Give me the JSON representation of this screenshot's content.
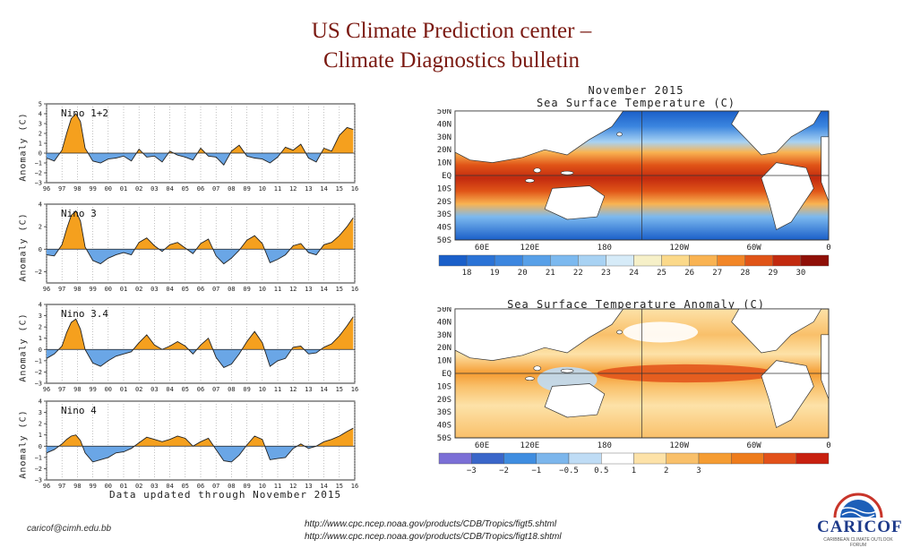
{
  "slide": {
    "title_line1": "US Climate Prediction center –",
    "title_line2": "Climate Diagnostics bulletin",
    "footer_email": "caricof@cimh.edu.bb",
    "url1": "http://www.cpc.ncep.noaa.gov/products/CDB/Tropics/figt5.shtml",
    "url2": "http://www.cpc.ncep.noaa.gov/products/CDB/Tropics/figt18.shtml",
    "updated_note": "Data updated through November 2015",
    "logo_text": "CARICOF",
    "logo_sub": "CARIBBEAN CLIMATE OUTLOOK FORUM"
  },
  "colors": {
    "positive": "#f5a01e",
    "negative": "#6aa6e6",
    "ocean": "#3b7fd0",
    "land": "#ffffff",
    "dark": "#222222"
  },
  "chart_data": [
    {
      "type": "area",
      "title": "Nino 1+2",
      "ylabel": "Anomaly (C)",
      "ylim": [
        -3,
        5
      ],
      "yticks": [
        -3,
        -2,
        -1,
        0,
        1,
        2,
        3,
        4,
        5
      ],
      "xticks": [
        "96",
        "97",
        "98",
        "99",
        "00",
        "01",
        "02",
        "03",
        "04",
        "05",
        "06",
        "07",
        "08",
        "09",
        "10",
        "11",
        "12",
        "13",
        "14",
        "15",
        "16"
      ],
      "x": [
        1996,
        1996.5,
        1997,
        1997.3,
        1997.6,
        1997.9,
        1998.2,
        1998.5,
        1999,
        1999.5,
        2000,
        2000.5,
        2001,
        2001.5,
        2002,
        2002.5,
        2003,
        2003.5,
        2004,
        2004.5,
        2005,
        2005.5,
        2006,
        2006.5,
        2007,
        2007.5,
        2008,
        2008.5,
        2009,
        2009.5,
        2010,
        2010.5,
        2011,
        2011.5,
        2012,
        2012.5,
        2013,
        2013.5,
        2014,
        2014.5,
        2015,
        2015.5,
        2015.9
      ],
      "y": [
        -0.5,
        -0.8,
        0.3,
        2.0,
        3.5,
        4.0,
        3.2,
        0.5,
        -0.8,
        -1.0,
        -0.6,
        -0.5,
        -0.3,
        -0.8,
        0.4,
        -0.4,
        -0.3,
        -0.9,
        0.2,
        -0.2,
        -0.4,
        -0.7,
        0.5,
        -0.3,
        -0.4,
        -1.2,
        0.2,
        0.8,
        -0.3,
        -0.5,
        -0.6,
        -1.0,
        -0.4,
        0.6,
        0.3,
        0.9,
        -0.5,
        -0.9,
        0.5,
        0.2,
        1.8,
        2.6,
        2.4
      ]
    },
    {
      "type": "area",
      "title": "Nino 3",
      "ylabel": "Anomaly (C)",
      "ylim": [
        -3,
        4
      ],
      "yticks": [
        -2,
        0,
        2,
        4
      ],
      "xticks": [
        "96",
        "97",
        "98",
        "99",
        "00",
        "01",
        "02",
        "03",
        "04",
        "05",
        "06",
        "07",
        "08",
        "09",
        "10",
        "11",
        "12",
        "13",
        "14",
        "15",
        "16"
      ],
      "x": [
        1996,
        1996.5,
        1997,
        1997.3,
        1997.6,
        1997.9,
        1998.2,
        1998.5,
        1999,
        1999.5,
        2000,
        2000.5,
        2001,
        2001.5,
        2002,
        2002.5,
        2003,
        2003.5,
        2004,
        2004.5,
        2005,
        2005.5,
        2006,
        2006.5,
        2007,
        2007.5,
        2008,
        2008.5,
        2009,
        2009.5,
        2010,
        2010.5,
        2011,
        2011.5,
        2012,
        2012.5,
        2013,
        2013.5,
        2014,
        2014.5,
        2015,
        2015.5,
        2015.9
      ],
      "y": [
        -0.5,
        -0.6,
        0.4,
        1.8,
        3.0,
        3.4,
        2.5,
        0.2,
        -1.0,
        -1.3,
        -0.8,
        -0.5,
        -0.3,
        -0.5,
        0.6,
        1.0,
        0.3,
        -0.2,
        0.4,
        0.6,
        0.1,
        -0.4,
        0.5,
        0.9,
        -0.6,
        -1.3,
        -0.8,
        -0.1,
        0.8,
        1.2,
        0.5,
        -1.2,
        -0.9,
        -0.5,
        0.3,
        0.5,
        -0.3,
        -0.5,
        0.4,
        0.6,
        1.2,
        2.0,
        2.8
      ]
    },
    {
      "type": "area",
      "title": "Nino 3.4",
      "ylabel": "Anomaly (C)",
      "ylim": [
        -3,
        4
      ],
      "yticks": [
        -3,
        -2,
        -1,
        0,
        1,
        2,
        3,
        4
      ],
      "xticks": [
        "96",
        "97",
        "98",
        "99",
        "00",
        "01",
        "02",
        "03",
        "04",
        "05",
        "06",
        "07",
        "08",
        "09",
        "10",
        "11",
        "12",
        "13",
        "14",
        "15",
        "16"
      ],
      "x": [
        1996,
        1996.5,
        1997,
        1997.3,
        1997.6,
        1997.9,
        1998.2,
        1998.5,
        1999,
        1999.5,
        2000,
        2000.5,
        2001,
        2001.5,
        2002,
        2002.5,
        2003,
        2003.5,
        2004,
        2004.5,
        2005,
        2005.5,
        2006,
        2006.5,
        2007,
        2007.5,
        2008,
        2008.5,
        2009,
        2009.5,
        2010,
        2010.5,
        2011,
        2011.5,
        2012,
        2012.5,
        2013,
        2013.5,
        2014,
        2014.5,
        2015,
        2015.5,
        2015.9
      ],
      "y": [
        -0.8,
        -0.4,
        0.3,
        1.5,
        2.4,
        2.7,
        1.8,
        0.0,
        -1.2,
        -1.5,
        -1.0,
        -0.6,
        -0.4,
        -0.2,
        0.6,
        1.3,
        0.4,
        0.0,
        0.3,
        0.7,
        0.3,
        -0.4,
        0.4,
        1.0,
        -0.7,
        -1.6,
        -1.3,
        -0.4,
        0.7,
        1.6,
        0.6,
        -1.5,
        -1.0,
        -0.8,
        0.2,
        0.3,
        -0.4,
        -0.3,
        0.2,
        0.5,
        1.2,
        2.1,
        2.9
      ]
    },
    {
      "type": "area",
      "title": "Nino 4",
      "ylabel": "Anomaly (C)",
      "ylim": [
        -3,
        4
      ],
      "yticks": [
        -3,
        -2,
        -1,
        0,
        1,
        2,
        3,
        4
      ],
      "xticks": [
        "96",
        "97",
        "98",
        "99",
        "00",
        "01",
        "02",
        "03",
        "04",
        "05",
        "06",
        "07",
        "08",
        "09",
        "10",
        "11",
        "12",
        "13",
        "14",
        "15",
        "16"
      ],
      "x": [
        1996,
        1996.5,
        1997,
        1997.3,
        1997.6,
        1997.9,
        1998.2,
        1998.5,
        1999,
        1999.5,
        2000,
        2000.5,
        2001,
        2001.5,
        2002,
        2002.5,
        2003,
        2003.5,
        2004,
        2004.5,
        2005,
        2005.5,
        2006,
        2006.5,
        2007,
        2007.5,
        2008,
        2008.5,
        2009,
        2009.5,
        2010,
        2010.5,
        2011,
        2011.5,
        2012,
        2012.5,
        2013,
        2013.5,
        2014,
        2014.5,
        2015,
        2015.5,
        2015.9
      ],
      "y": [
        -0.6,
        -0.3,
        0.2,
        0.6,
        0.9,
        1.0,
        0.5,
        -0.6,
        -1.4,
        -1.2,
        -1.0,
        -0.6,
        -0.5,
        -0.2,
        0.3,
        0.8,
        0.6,
        0.4,
        0.6,
        0.9,
        0.7,
        0.0,
        0.4,
        0.7,
        -0.3,
        -1.3,
        -1.4,
        -0.8,
        0.1,
        0.9,
        0.6,
        -1.2,
        -1.1,
        -1.0,
        -0.2,
        0.2,
        -0.2,
        0.0,
        0.4,
        0.6,
        0.9,
        1.3,
        1.6
      ]
    },
    {
      "type": "heatmap",
      "title": "November 2015",
      "subtitle": "Sea Surface Temperature (C)",
      "yticks": [
        "50N",
        "40N",
        "30N",
        "20N",
        "10N",
        "EQ",
        "10S",
        "20S",
        "30S",
        "40S",
        "50S"
      ],
      "xticks": [
        "60E",
        "120E",
        "180",
        "120W",
        "60W",
        "0"
      ],
      "colorbar_ticks": [
        "18",
        "19",
        "20",
        "21",
        "22",
        "23",
        "24",
        "25",
        "26",
        "27",
        "28",
        "29",
        "30"
      ],
      "colorbar_colors": [
        "#1a5fc9",
        "#2b73d6",
        "#3c86df",
        "#58a0e8",
        "#7cb9ef",
        "#a8d2f3",
        "#d6ebf8",
        "#f6f0c8",
        "#fbd98a",
        "#f9b352",
        "#f28627",
        "#e05417",
        "#c22a0f",
        "#8f1008"
      ]
    },
    {
      "type": "heatmap",
      "title": "Sea Surface Temperature Anomaly (C)",
      "yticks": [
        "50N",
        "40N",
        "30N",
        "20N",
        "10N",
        "EQ",
        "10S",
        "20S",
        "30S",
        "40S",
        "50S"
      ],
      "xticks": [
        "60E",
        "120E",
        "180",
        "120W",
        "60W",
        "0"
      ],
      "colorbar_ticks": [
        "−3",
        "−2",
        "−1",
        "−0.5",
        "0.5",
        "1",
        "2",
        "3"
      ],
      "colorbar_colors": [
        "#7b6fd6",
        "#3a66c9",
        "#3f8de0",
        "#7cb6ec",
        "#bfdcf5",
        "#ffffff",
        "#fde2a8",
        "#f9c06a",
        "#f59c32",
        "#ee7c1c",
        "#e2511a",
        "#c8200f"
      ]
    }
  ]
}
